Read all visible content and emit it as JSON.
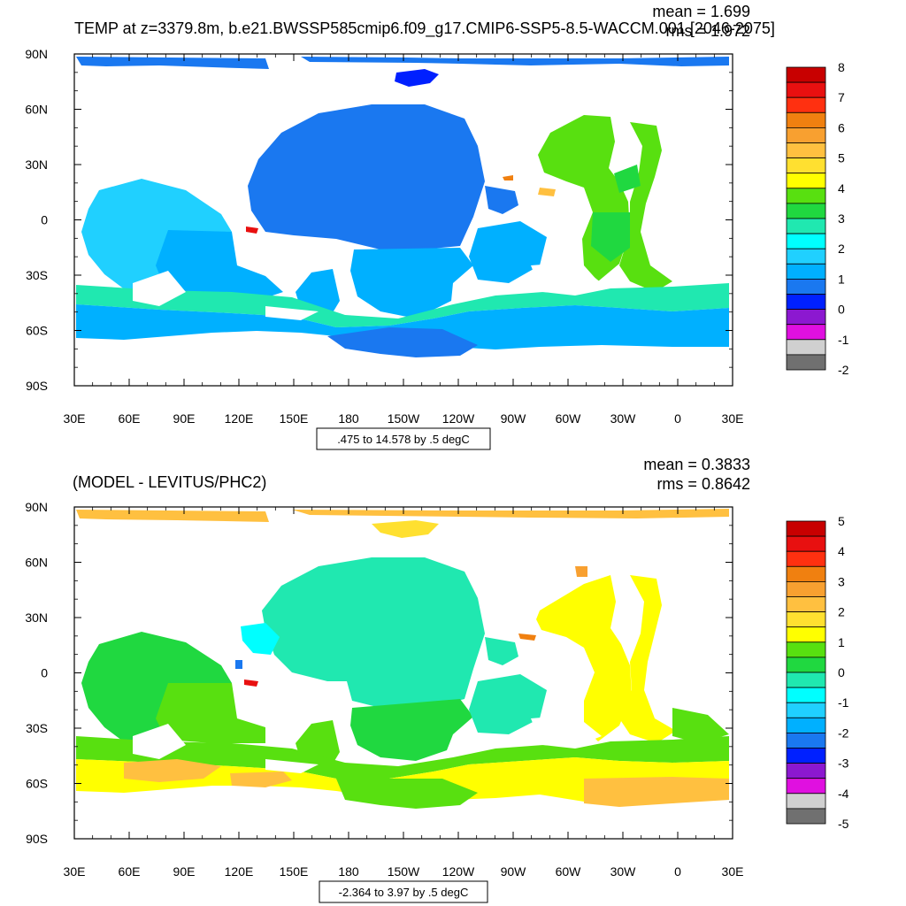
{
  "panels": [
    {
      "title": "TEMP at z=3379.8m, b.e21.BWSSP585cmip6.f09_g17.CMIP6-SSP5-8.5-WACCM.001 [2046-2075]",
      "mean_text": "mean = 1.699",
      "rms_text": "rms = 1.972",
      "range_text": ".475 to 14.578 by .5 degC",
      "lat_labels": [
        "90N",
        "60N",
        "30N",
        "0",
        "30S",
        "60S",
        "90S"
      ],
      "lon_labels": [
        "30E",
        "60E",
        "90E",
        "120E",
        "150E",
        "180",
        "150W",
        "120W",
        "90W",
        "60W",
        "30W",
        "0",
        "30E"
      ],
      "colorbar": {
        "labels": [
          "8",
          "7",
          "6",
          "5",
          "4",
          "3",
          "2",
          "1",
          "0",
          "-1",
          "-2"
        ],
        "colors": [
          "#c80000",
          "#e81010",
          "#ff3010",
          "#f08010",
          "#f8a030",
          "#ffc040",
          "#ffe030",
          "#ffff00",
          "#58e010",
          "#20d840",
          "#20e8b0",
          "#00ffff",
          "#20d0ff",
          "#00b0ff",
          "#1a78f0",
          "#0020ff",
          "#8c18d0",
          "#e010e0",
          "#d0d0d0",
          "#707070"
        ]
      }
    },
    {
      "title": "(MODEL - LEVITUS/PHC2)",
      "mean_text": "mean = 0.3833",
      "rms_text": "rms = 0.8642",
      "range_text": "-2.364 to 3.97 by .5 degC",
      "lat_labels": [
        "90N",
        "60N",
        "30N",
        "0",
        "30S",
        "60S",
        "90S"
      ],
      "lon_labels": [
        "30E",
        "60E",
        "90E",
        "120E",
        "150E",
        "180",
        "150W",
        "120W",
        "90W",
        "60W",
        "30W",
        "0",
        "30E"
      ],
      "colorbar": {
        "labels": [
          "5",
          "4",
          "3",
          "2",
          "1",
          "0",
          "-1",
          "-2",
          "-3",
          "-4",
          "-5"
        ],
        "colors": [
          "#c80000",
          "#e81010",
          "#ff3010",
          "#f08010",
          "#f8a030",
          "#ffc040",
          "#ffe030",
          "#ffff00",
          "#58e010",
          "#20d840",
          "#20e8b0",
          "#00ffff",
          "#20d0ff",
          "#00b0ff",
          "#1a78f0",
          "#0020ff",
          "#8c18d0",
          "#e010e0",
          "#d0d0d0",
          "#707070"
        ]
      }
    }
  ]
}
